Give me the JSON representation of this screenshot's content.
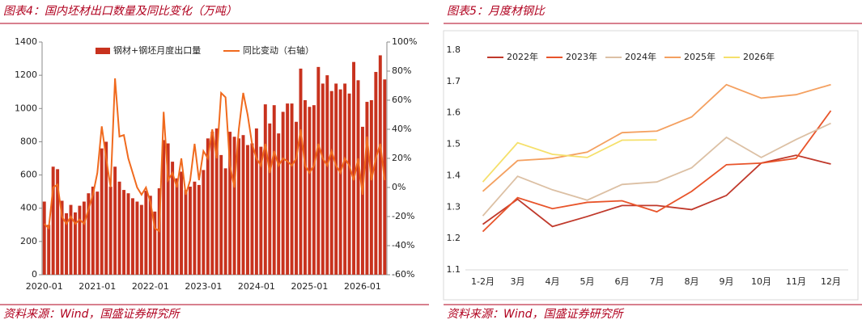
{
  "chart_data": [
    {
      "type": "combo",
      "title": "图表4：国内坯材出口数量及同比变化（万吨）",
      "source": "资料来源：Wind，国盛证券研究所",
      "categories": [
        "2020-01",
        null,
        null,
        null,
        null,
        null,
        null,
        null,
        null,
        null,
        null,
        null,
        "2021-01",
        null,
        null,
        null,
        null,
        null,
        null,
        null,
        null,
        null,
        null,
        null,
        "2022-01",
        null,
        null,
        null,
        null,
        null,
        null,
        null,
        null,
        null,
        null,
        null,
        "2023-01",
        null,
        null,
        null,
        null,
        null,
        null,
        null,
        null,
        null,
        null,
        null,
        "2024-01",
        null,
        null,
        null,
        null,
        null,
        null,
        null,
        null,
        null,
        null,
        null,
        "2025-01",
        null,
        null,
        null,
        null,
        null,
        null,
        null,
        null,
        null,
        null,
        null,
        "2026-01",
        null,
        null,
        null,
        null,
        null
      ],
      "series": [
        {
          "name": "钢材+钢坯月度出口量",
          "type": "bar",
          "color": "#c8321e",
          "values": [
            440,
            300,
            650,
            635,
            445,
            370,
            420,
            375,
            415,
            440,
            490,
            530,
            500,
            760,
            800,
            530,
            650,
            560,
            510,
            490,
            460,
            440,
            420,
            505,
            475,
            380,
            520,
            810,
            790,
            680,
            580,
            620,
            510,
            530,
            560,
            540,
            630,
            820,
            860,
            880,
            720,
            640,
            860,
            830,
            820,
            840,
            780,
            790,
            880,
            770,
            1025,
            910,
            1020,
            850,
            980,
            1030,
            1030,
            920,
            1240,
            1050,
            1010,
            1020,
            1250,
            1150,
            1200,
            1105,
            1150,
            1115,
            1150,
            1090,
            1280,
            1170,
            890,
            1040,
            1050,
            1220,
            1320,
            1175
          ]
        },
        {
          "name": "同比变动（右轴）",
          "type": "line",
          "axis": "y2",
          "color": "#f06a1e",
          "values": [
            -25,
            -28,
            0,
            2,
            -20,
            -25,
            -20,
            -25,
            -22,
            -25,
            -15,
            -5,
            10,
            42,
            20,
            0,
            75,
            35,
            36,
            20,
            10,
            0,
            -5,
            0,
            -10,
            -28,
            -30,
            52,
            5,
            10,
            0,
            20,
            -5,
            5,
            30,
            5,
            25,
            20,
            40,
            20,
            65,
            62,
            15,
            0,
            40,
            65,
            50,
            30,
            20,
            15,
            30,
            10,
            25,
            15,
            20,
            18,
            15,
            20,
            40,
            15,
            10,
            15,
            30,
            20,
            15,
            25,
            15,
            10,
            20,
            15,
            5,
            20,
            -5,
            35,
            5,
            20,
            30,
            5
          ]
        }
      ],
      "ylim": [
        0,
        1400
      ],
      "yticks": [
        0,
        200,
        400,
        600,
        800,
        1000,
        1200,
        1400
      ],
      "y2lim": [
        -60,
        100
      ],
      "y2ticks": [
        {
          "value": -60,
          "label": "-60%"
        },
        {
          "value": -40,
          "label": "-40%"
        },
        {
          "value": -20,
          "label": "-20%"
        },
        {
          "value": 0,
          "label": "0%"
        },
        {
          "value": 20,
          "label": "20%"
        },
        {
          "value": 40,
          "label": "40%"
        },
        {
          "value": 60,
          "label": "60%"
        },
        {
          "value": 80,
          "label": "80%"
        },
        {
          "value": 100,
          "label": "100%"
        }
      ],
      "grid": false,
      "legend": "top"
    },
    {
      "type": "line",
      "title": "图表5：月度材钢比",
      "source": "资料来源：Wind，国盛证券研究所",
      "categories": [
        "1-2月",
        "3月",
        "4月",
        "5月",
        "6月",
        "7月",
        "8月",
        "9月",
        "10月",
        "11月",
        "12月"
      ],
      "series": [
        {
          "name": "2022年",
          "color": "#c0392b",
          "values": [
            1.245,
            1.325,
            1.238,
            1.27,
            1.305,
            1.305,
            1.292,
            1.337,
            1.44,
            1.465,
            1.437
          ]
        },
        {
          "name": "2023年",
          "color": "#e8542a",
          "values": [
            1.222,
            1.33,
            1.295,
            1.315,
            1.32,
            1.285,
            1.35,
            1.435,
            1.44,
            1.455,
            1.607
          ]
        },
        {
          "name": "2024年",
          "color": "#dcc0a4",
          "values": [
            1.272,
            1.398,
            1.355,
            1.322,
            1.372,
            1.38,
            1.425,
            1.522,
            1.458,
            1.515,
            1.567
          ]
        },
        {
          "name": "2025年",
          "color": "#f4a060",
          "values": [
            1.35,
            1.448,
            1.455,
            1.475,
            1.537,
            1.542,
            1.587,
            1.69,
            1.647,
            1.658,
            1.69
          ]
        },
        {
          "name": "2026年",
          "color": "#f5e06b",
          "values": [
            1.38,
            1.505,
            1.468,
            1.458,
            1.513,
            1.514,
            null,
            null,
            null,
            null,
            null
          ]
        }
      ],
      "ylim": [
        1.1,
        1.8
      ],
      "yticks": [
        1.1,
        1.2,
        1.3,
        1.4,
        1.5,
        1.6,
        1.7,
        1.8
      ],
      "grid": false,
      "legend": "top"
    }
  ]
}
